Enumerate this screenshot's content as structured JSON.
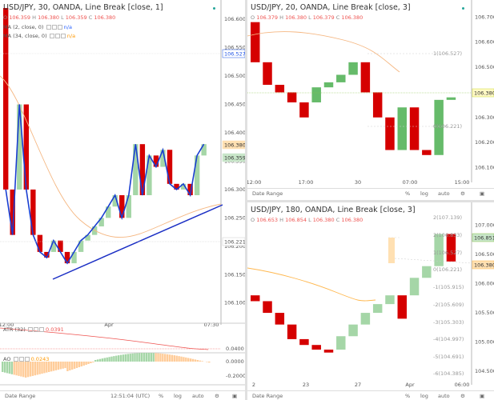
{
  "chart_data": [
    {
      "type": "line",
      "title": "USD/JPY, 30, OANDA, Line Break [close, 1]",
      "ohlc": {
        "o": "106.359",
        "h": "106.380",
        "l": "106.359",
        "c": "106.380"
      },
      "indicators": [
        {
          "label": "MA (2, close, 0)",
          "value": "n/a"
        },
        {
          "label": "MA (34, close, 0)",
          "value": "n/a"
        }
      ],
      "price_ticks": [
        "106.600",
        "106.550",
        "106.500",
        "106.450",
        "106.400",
        "106.350",
        "106.300",
        "106.250",
        "106.200",
        "106.150",
        "106.100"
      ],
      "price_tags": [
        "106.527",
        "106.380",
        "106.359",
        "106.221"
      ],
      "time_ticks": [
        "12:00",
        "Apr",
        "07:30"
      ],
      "ylim": [
        106.07,
        106.62
      ],
      "bricks": [
        {
          "o": 106.62,
          "c": 106.3,
          "up": false
        },
        {
          "o": 106.3,
          "c": 106.22,
          "up": false
        },
        {
          "o": 106.3,
          "c": 106.45,
          "up": true
        },
        {
          "o": 106.45,
          "c": 106.3,
          "up": false
        },
        {
          "o": 106.3,
          "c": 106.22,
          "up": false
        },
        {
          "o": 106.22,
          "c": 106.19,
          "up": false
        },
        {
          "o": 106.19,
          "c": 106.18,
          "up": false
        },
        {
          "o": 106.19,
          "c": 106.21,
          "up": true
        },
        {
          "o": 106.21,
          "c": 106.19,
          "up": false
        },
        {
          "o": 106.19,
          "c": 106.17,
          "up": false
        },
        {
          "o": 106.17,
          "c": 106.19,
          "up": true
        },
        {
          "o": 106.19,
          "c": 106.21,
          "up": true
        },
        {
          "o": 106.21,
          "c": 106.22,
          "up": true
        },
        {
          "o": 106.22,
          "c": 106.235,
          "up": true
        },
        {
          "o": 106.235,
          "c": 106.25,
          "up": true
        },
        {
          "o": 106.25,
          "c": 106.27,
          "up": true
        },
        {
          "o": 106.27,
          "c": 106.29,
          "up": true
        },
        {
          "o": 106.29,
          "c": 106.25,
          "up": false
        },
        {
          "o": 106.25,
          "c": 106.29,
          "up": true
        },
        {
          "o": 106.29,
          "c": 106.38,
          "up": true
        },
        {
          "o": 106.38,
          "c": 106.29,
          "up": false
        },
        {
          "o": 106.29,
          "c": 106.36,
          "up": true
        },
        {
          "o": 106.36,
          "c": 106.34,
          "up": false
        },
        {
          "o": 106.34,
          "c": 106.37,
          "up": true
        },
        {
          "o": 106.37,
          "c": 106.31,
          "up": false
        },
        {
          "o": 106.31,
          "c": 106.3,
          "up": false
        },
        {
          "o": 106.3,
          "c": 106.31,
          "up": true
        },
        {
          "o": 106.31,
          "c": 106.29,
          "up": false
        },
        {
          "o": 106.29,
          "c": 106.36,
          "up": true
        },
        {
          "o": 106.36,
          "c": 106.38,
          "up": true
        }
      ],
      "atr": {
        "label": "ATR (32)",
        "value": "0.0391",
        "ticks": [
          "0.0400"
        ]
      },
      "ao": {
        "label": "AO",
        "value": "0.0243",
        "ticks": [
          "0.0000",
          "-0.2000"
        ]
      },
      "status_bar": {
        "range": "Date Range",
        "time": "12:51:04 (UTC)",
        "pct": "%",
        "log": "log",
        "auto": "auto"
      }
    },
    {
      "type": "line",
      "title": "USD/JPY, 20, OANDA, Line Break [close, 3]",
      "ohlc": {
        "o": "106.379",
        "h": "106.380",
        "l": "106.379",
        "c": "106.380"
      },
      "price_ticks": [
        "106.700",
        "106.600",
        "106.500",
        "106.400",
        "106.300",
        "106.200",
        "106.100"
      ],
      "price_tags": [
        "106.380"
      ],
      "fib_labels": [
        "1(106.527)",
        "0(106.221)"
      ],
      "time_ticks": [
        "12:00",
        "17:00",
        "30",
        "07:00",
        "15:00"
      ],
      "ylim": [
        106.06,
        106.73
      ],
      "bricks": [
        {
          "o": 106.68,
          "c": 106.52,
          "up": false
        },
        {
          "o": 106.52,
          "c": 106.43,
          "up": false
        },
        {
          "o": 106.43,
          "c": 106.4,
          "up": false
        },
        {
          "o": 106.4,
          "c": 106.36,
          "up": false
        },
        {
          "o": 106.36,
          "c": 106.3,
          "up": false
        },
        {
          "o": 106.36,
          "c": 106.42,
          "up": true
        },
        {
          "o": 106.42,
          "c": 106.44,
          "up": true
        },
        {
          "o": 106.44,
          "c": 106.47,
          "up": true
        },
        {
          "o": 106.47,
          "c": 106.52,
          "up": true
        },
        {
          "o": 106.52,
          "c": 106.4,
          "up": false
        },
        {
          "o": 106.4,
          "c": 106.3,
          "up": false
        },
        {
          "o": 106.3,
          "c": 106.17,
          "up": false
        },
        {
          "o": 106.17,
          "c": 106.34,
          "up": true
        },
        {
          "o": 106.34,
          "c": 106.17,
          "up": false
        },
        {
          "o": 106.17,
          "c": 106.15,
          "up": false
        },
        {
          "o": 106.15,
          "c": 106.37,
          "up": true
        },
        {
          "o": 106.37,
          "c": 106.38,
          "up": true
        }
      ],
      "status_bar": {
        "range": "Date Range",
        "pct": "%",
        "log": "log",
        "auto": "auto"
      }
    },
    {
      "type": "line",
      "title": "USD/JPY, 180, OANDA, Line Break [close, 3]",
      "ohlc": {
        "o": "106.653",
        "h": "106.854",
        "l": "106.380",
        "c": "106.380"
      },
      "price_ticks": [
        "107.000",
        "106.500",
        "106.000",
        "105.500",
        "105.000",
        "104.500"
      ],
      "price_tags": [
        "106.851",
        "106.380"
      ],
      "fib_labels": [
        "2(107.139)",
        "2(106.833)",
        "1(106.527)",
        "0(106.221)",
        "-1(105.915)",
        "-2(105.609)",
        "-3(105.303)",
        "-4(104.997)",
        "-5(104.691)",
        "-6(104.385)"
      ],
      "time_ticks": [
        "2",
        "23",
        "27",
        "Apr",
        "06:00"
      ],
      "ylim": [
        104.35,
        107.2
      ],
      "bricks": [
        {
          "o": 105.8,
          "c": 105.7,
          "up": false
        },
        {
          "o": 105.7,
          "c": 105.5,
          "up": false
        },
        {
          "o": 105.5,
          "c": 105.3,
          "up": false
        },
        {
          "o": 105.3,
          "c": 105.05,
          "up": false
        },
        {
          "o": 105.05,
          "c": 104.95,
          "up": false
        },
        {
          "o": 104.95,
          "c": 104.87,
          "up": false
        },
        {
          "o": 104.87,
          "c": 104.82,
          "up": false
        },
        {
          "o": 104.87,
          "c": 105.1,
          "up": true
        },
        {
          "o": 105.1,
          "c": 105.3,
          "up": true
        },
        {
          "o": 105.3,
          "c": 105.5,
          "up": true
        },
        {
          "o": 105.5,
          "c": 105.65,
          "up": true
        },
        {
          "o": 105.65,
          "c": 105.8,
          "up": true
        },
        {
          "o": 105.8,
          "c": 105.4,
          "up": false
        },
        {
          "o": 105.8,
          "c": 106.1,
          "up": true
        },
        {
          "o": 106.1,
          "c": 106.3,
          "up": true
        },
        {
          "o": 106.3,
          "c": 106.85,
          "up": true
        },
        {
          "o": 106.85,
          "c": 106.38,
          "up": false
        }
      ],
      "status_bar": {
        "range": "Date Range",
        "pct": "%",
        "log": "log",
        "auto": "auto"
      }
    }
  ],
  "colors": {
    "up": "#a5d6a7",
    "up_dark": "#66bb6a",
    "down": "#d50000",
    "ma_fast": "#1a3ed1",
    "ma_slow": "#f5b782",
    "trend": "#1a2ec4",
    "atr": "#ef5350",
    "ao_up": "#a5d6a7",
    "ao_down": "#ffcc99"
  }
}
